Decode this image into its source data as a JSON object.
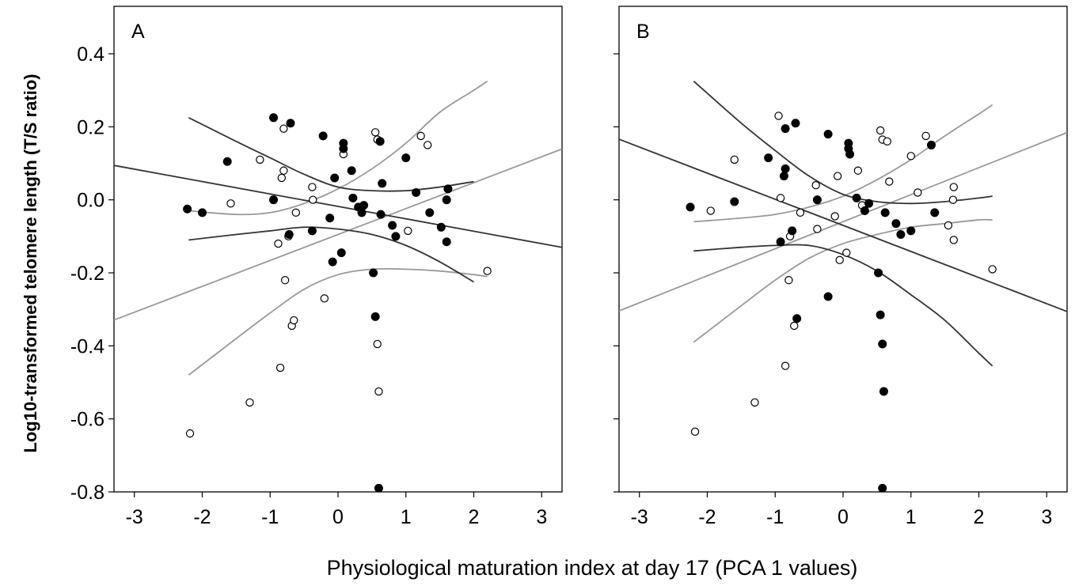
{
  "chart_data": {
    "type": "scatter",
    "xlabel": "Physiological maturation index at day 17 (PCA 1 values)",
    "ylabel": "Log10-transformed telomere length (T/S ratio)",
    "xlim": [
      -3.3,
      3.3
    ],
    "ylim": [
      -0.8,
      0.53
    ],
    "x_ticks": [
      {
        "value": -3,
        "label": "-3"
      },
      {
        "value": -2,
        "label": "-2"
      },
      {
        "value": -1,
        "label": "-1"
      },
      {
        "value": 0,
        "label": "0"
      },
      {
        "value": 1,
        "label": "1"
      },
      {
        "value": 2,
        "label": "2"
      },
      {
        "value": 3,
        "label": "3"
      }
    ],
    "y_ticks": [
      {
        "value": 0.4,
        "label": "0.4"
      },
      {
        "value": 0.2,
        "label": "0.2"
      },
      {
        "value": 0.0,
        "label": "0.0"
      },
      {
        "value": -0.2,
        "label": "-0.2"
      },
      {
        "value": -0.4,
        "label": "-0.4"
      },
      {
        "value": -0.6,
        "label": "-0.6"
      },
      {
        "value": -0.8,
        "label": "-0.8"
      }
    ],
    "colors": {
      "filled": "#000000",
      "open": "#ffffff",
      "filled_line": "#333333",
      "open_line": "#999999"
    },
    "panels": [
      {
        "label": "A",
        "filled_points": [
          [
            -2.22,
            -0.025
          ],
          [
            -2.0,
            -0.035
          ],
          [
            -1.63,
            0.105
          ],
          [
            -0.95,
            0.225
          ],
          [
            -0.95,
            0.0
          ],
          [
            -0.7,
            0.21
          ],
          [
            -0.72,
            -0.095
          ],
          [
            -0.38,
            -0.085
          ],
          [
            -0.22,
            0.175
          ],
          [
            -0.12,
            -0.05
          ],
          [
            -0.08,
            -0.17
          ],
          [
            -0.05,
            0.06
          ],
          [
            0.08,
            0.155
          ],
          [
            0.08,
            0.14
          ],
          [
            0.05,
            -0.145
          ],
          [
            0.2,
            0.08
          ],
          [
            0.22,
            0.005
          ],
          [
            0.3,
            -0.02
          ],
          [
            0.35,
            -0.035
          ],
          [
            0.38,
            -0.015
          ],
          [
            0.52,
            -0.2
          ],
          [
            0.55,
            -0.32
          ],
          [
            0.62,
            0.16
          ],
          [
            0.63,
            -0.04
          ],
          [
            0.65,
            0.045
          ],
          [
            0.8,
            -0.07
          ],
          [
            0.85,
            -0.1
          ],
          [
            1.0,
            0.115
          ],
          [
            1.15,
            0.02
          ],
          [
            1.35,
            -0.035
          ],
          [
            1.52,
            -0.075
          ],
          [
            1.6,
            0.0
          ],
          [
            1.62,
            0.03
          ],
          [
            1.6,
            -0.115
          ],
          [
            0.6,
            -0.79
          ]
        ],
        "open_points": [
          [
            -2.18,
            -0.64
          ],
          [
            -1.58,
            -0.01
          ],
          [
            -1.3,
            -0.555
          ],
          [
            -1.15,
            0.11
          ],
          [
            -0.88,
            -0.12
          ],
          [
            -0.85,
            -0.46
          ],
          [
            -0.83,
            0.06
          ],
          [
            -0.8,
            0.195
          ],
          [
            -0.8,
            0.08
          ],
          [
            -0.78,
            -0.22
          ],
          [
            -0.73,
            -0.1
          ],
          [
            -0.68,
            -0.345
          ],
          [
            -0.65,
            -0.33
          ],
          [
            -0.62,
            -0.035
          ],
          [
            -0.38,
            0.035
          ],
          [
            -0.37,
            0.0
          ],
          [
            -0.2,
            -0.27
          ],
          [
            0.08,
            0.125
          ],
          [
            0.55,
            0.185
          ],
          [
            0.58,
            0.165
          ],
          [
            0.58,
            -0.395
          ],
          [
            0.6,
            -0.525
          ],
          [
            1.03,
            -0.085
          ],
          [
            1.22,
            0.175
          ],
          [
            1.32,
            0.15
          ],
          [
            2.2,
            -0.195
          ]
        ],
        "filled_fit": {
          "kind": "line",
          "intercept": -0.018,
          "slope": -0.034,
          "x_range": [
            -3.3,
            3.3
          ]
        },
        "filled_ci": [
          {
            "x": [
              -2.2,
              -1.5,
              -1.0,
              -0.5,
              0.0,
              0.5,
              1.0,
              1.5,
              2.0
            ],
            "y": [
              0.225,
              0.16,
              0.115,
              0.07,
              0.035,
              0.025,
              0.025,
              0.035,
              0.05
            ]
          },
          {
            "x": [
              -2.2,
              -1.5,
              -1.0,
              -0.5,
              0.0,
              0.5,
              1.0,
              1.5,
              2.0
            ],
            "y": [
              -0.11,
              -0.095,
              -0.085,
              -0.075,
              -0.08,
              -0.095,
              -0.125,
              -0.17,
              -0.225
            ]
          }
        ],
        "open_fit": {
          "kind": "line",
          "intercept": -0.095,
          "slope": 0.071,
          "x_range": [
            -3.3,
            3.3
          ]
        },
        "open_ci": [
          {
            "x": [
              -2.2,
              -1.5,
              -1.0,
              -0.5,
              0.0,
              0.5,
              1.0,
              1.5,
              2.0,
              2.2
            ],
            "y": [
              -0.03,
              -0.04,
              -0.035,
              -0.01,
              0.03,
              0.085,
              0.155,
              0.24,
              0.3,
              0.325
            ]
          },
          {
            "x": [
              -2.2,
              -1.5,
              -1.0,
              -0.5,
              0.0,
              0.5,
              1.0,
              1.5,
              2.0,
              2.2
            ],
            "y": [
              -0.48,
              -0.38,
              -0.31,
              -0.245,
              -0.205,
              -0.19,
              -0.19,
              -0.195,
              -0.205,
              -0.21
            ]
          }
        ]
      },
      {
        "label": "B",
        "filled_points": [
          [
            -2.25,
            -0.02
          ],
          [
            -1.6,
            -0.005
          ],
          [
            -1.1,
            0.115
          ],
          [
            -0.85,
            0.085
          ],
          [
            -0.87,
            0.065
          ],
          [
            -0.85,
            0.195
          ],
          [
            -0.7,
            0.21
          ],
          [
            -0.75,
            -0.085
          ],
          [
            -0.92,
            -0.115
          ],
          [
            -0.68,
            -0.325
          ],
          [
            -0.38,
            0.0
          ],
          [
            -0.22,
            0.18
          ],
          [
            -0.22,
            -0.265
          ],
          [
            0.08,
            0.155
          ],
          [
            0.08,
            0.14
          ],
          [
            0.1,
            0.125
          ],
          [
            0.2,
            0.005
          ],
          [
            0.32,
            -0.03
          ],
          [
            0.38,
            -0.01
          ],
          [
            0.52,
            -0.2
          ],
          [
            0.55,
            -0.315
          ],
          [
            0.58,
            -0.395
          ],
          [
            0.6,
            -0.525
          ],
          [
            0.62,
            -0.035
          ],
          [
            0.78,
            -0.065
          ],
          [
            0.85,
            -0.095
          ],
          [
            1.0,
            -0.085
          ],
          [
            1.3,
            0.15
          ],
          [
            1.35,
            -0.035
          ],
          [
            0.58,
            -0.79
          ]
        ],
        "open_points": [
          [
            -2.18,
            -0.635
          ],
          [
            -1.95,
            -0.03
          ],
          [
            -1.6,
            0.11
          ],
          [
            -1.3,
            -0.555
          ],
          [
            -0.95,
            0.23
          ],
          [
            -0.92,
            0.005
          ],
          [
            -0.85,
            -0.455
          ],
          [
            -0.8,
            -0.22
          ],
          [
            -0.78,
            -0.1
          ],
          [
            -0.72,
            -0.345
          ],
          [
            -0.63,
            -0.035
          ],
          [
            -0.4,
            0.04
          ],
          [
            -0.38,
            -0.08
          ],
          [
            -0.12,
            -0.045
          ],
          [
            -0.08,
            0.065
          ],
          [
            -0.05,
            -0.165
          ],
          [
            0.05,
            -0.145
          ],
          [
            0.22,
            0.08
          ],
          [
            0.28,
            -0.015
          ],
          [
            0.55,
            0.19
          ],
          [
            0.58,
            0.165
          ],
          [
            0.65,
            0.16
          ],
          [
            0.68,
            0.05
          ],
          [
            1.0,
            0.12
          ],
          [
            1.1,
            0.02
          ],
          [
            1.22,
            0.175
          ],
          [
            1.55,
            -0.07
          ],
          [
            1.62,
            0.0
          ],
          [
            1.63,
            -0.11
          ],
          [
            1.63,
            0.035
          ],
          [
            2.2,
            -0.19
          ]
        ],
        "filled_fit": {
          "kind": "line",
          "intercept": -0.07,
          "slope": -0.0715,
          "x_range": [
            -3.3,
            3.3
          ]
        },
        "filled_ci": [
          {
            "x": [
              -2.2,
              -1.5,
              -1.0,
              -0.5,
              0.0,
              0.5,
              1.0,
              1.5,
              2.0,
              2.2
            ],
            "y": [
              0.325,
              0.21,
              0.135,
              0.065,
              0.015,
              -0.005,
              -0.01,
              -0.005,
              0.005,
              0.01
            ]
          },
          {
            "x": [
              -2.2,
              -1.5,
              -1.0,
              -0.5,
              0.0,
              0.5,
              1.0,
              1.5,
              2.0,
              2.2
            ],
            "y": [
              -0.14,
              -0.13,
              -0.125,
              -0.125,
              -0.15,
              -0.195,
              -0.26,
              -0.33,
              -0.42,
              -0.455
            ]
          }
        ],
        "open_fit": {
          "kind": "line",
          "intercept": -0.06,
          "slope": 0.074,
          "x_range": [
            -3.3,
            3.3
          ]
        },
        "open_ci": [
          {
            "x": [
              -2.2,
              -1.5,
              -1.0,
              -0.5,
              0.0,
              0.5,
              1.0,
              1.5,
              2.0,
              2.2
            ],
            "y": [
              -0.06,
              -0.05,
              -0.04,
              -0.02,
              0.01,
              0.055,
              0.11,
              0.175,
              0.235,
              0.26
            ]
          },
          {
            "x": [
              -2.2,
              -1.5,
              -1.0,
              -0.5,
              0.0,
              0.5,
              1.0,
              1.5,
              2.0,
              2.2
            ],
            "y": [
              -0.39,
              -0.29,
              -0.22,
              -0.16,
              -0.12,
              -0.095,
              -0.075,
              -0.065,
              -0.055,
              -0.055
            ]
          }
        ]
      }
    ]
  }
}
